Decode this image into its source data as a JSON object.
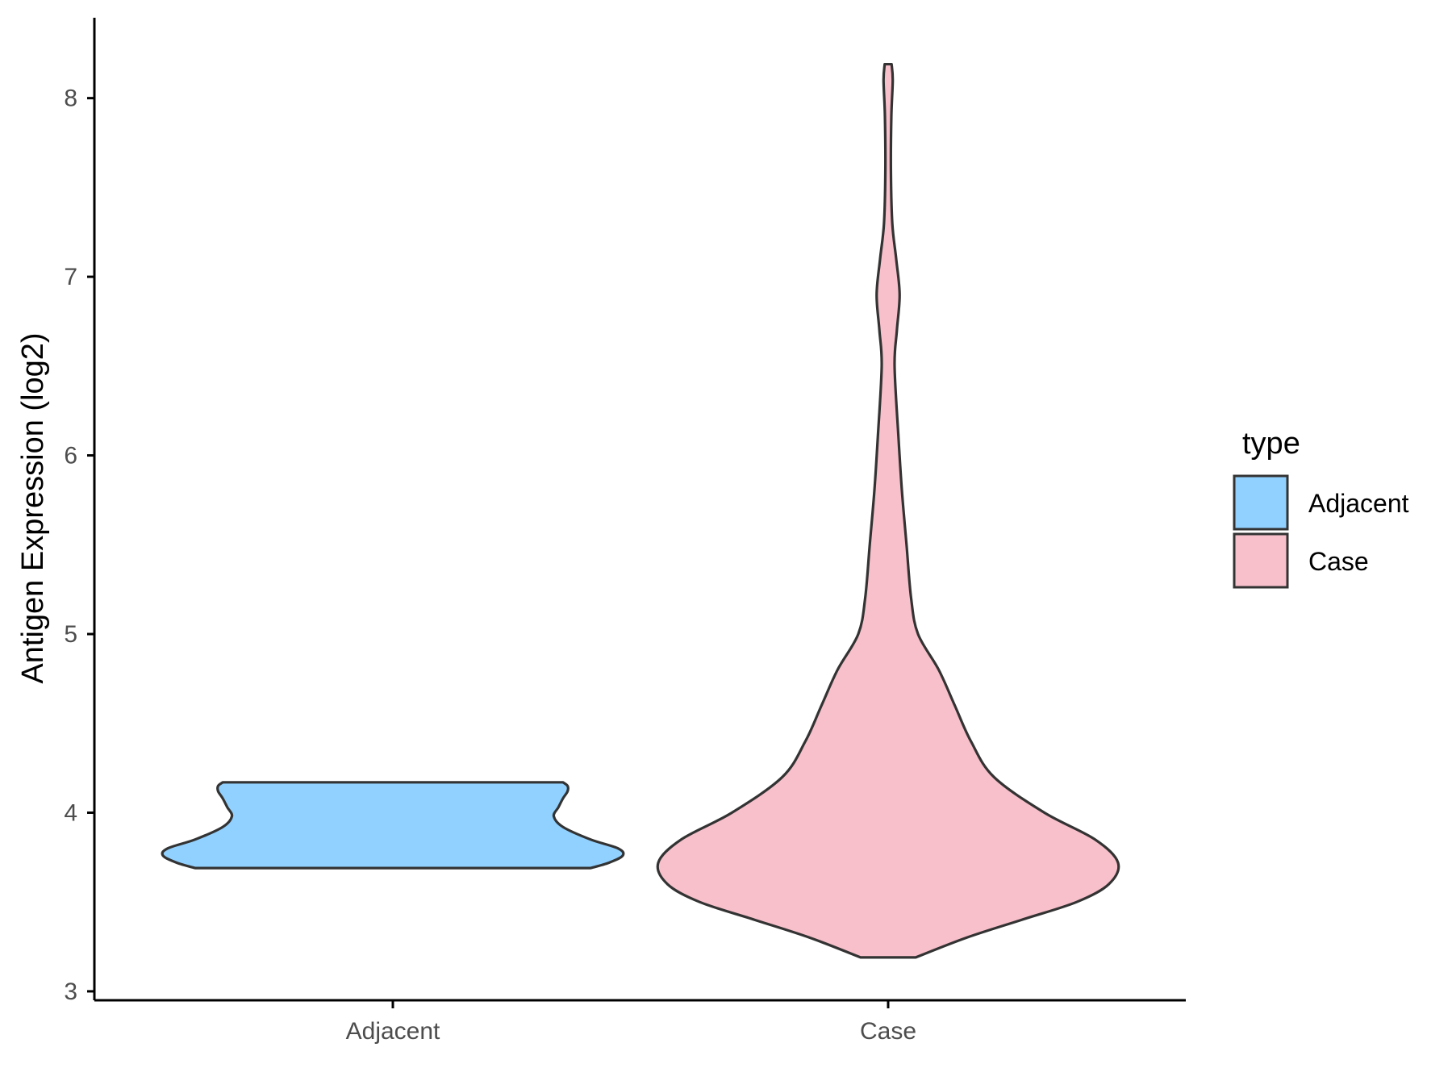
{
  "chart_data": {
    "type": "violin",
    "xlabel": "",
    "ylabel": "Antigen Expression (log2)",
    "ylim": [
      2.95,
      8.45
    ],
    "yticks": [
      3,
      4,
      5,
      6,
      7,
      8
    ],
    "categories": [
      "Adjacent",
      "Case"
    ],
    "grid": false,
    "legend": {
      "title": "type",
      "placement": "right",
      "entries": [
        {
          "label": "Adjacent",
          "color": "#91D1FF"
        },
        {
          "label": "Case",
          "color": "#F8C0CB"
        }
      ]
    },
    "series": [
      {
        "name": "Adjacent",
        "color": "#91D1FF",
        "min": 3.69,
        "max": 4.17,
        "density_profile": [
          [
            3.69,
            0.86
          ],
          [
            3.72,
            0.94
          ],
          [
            3.76,
            1.0
          ],
          [
            3.8,
            0.98
          ],
          [
            3.85,
            0.86
          ],
          [
            3.92,
            0.74
          ],
          [
            3.98,
            0.7
          ],
          [
            4.03,
            0.72
          ],
          [
            4.08,
            0.74
          ],
          [
            4.12,
            0.76
          ],
          [
            4.15,
            0.76
          ],
          [
            4.17,
            0.74
          ]
        ]
      },
      {
        "name": "Case",
        "color": "#F8C0CB",
        "min": 3.19,
        "max": 8.19,
        "density_profile": [
          [
            3.19,
            0.12
          ],
          [
            3.3,
            0.34
          ],
          [
            3.4,
            0.58
          ],
          [
            3.5,
            0.82
          ],
          [
            3.6,
            0.96
          ],
          [
            3.72,
            1.0
          ],
          [
            3.85,
            0.9
          ],
          [
            4.0,
            0.68
          ],
          [
            4.2,
            0.46
          ],
          [
            4.4,
            0.36
          ],
          [
            4.6,
            0.29
          ],
          [
            4.8,
            0.22
          ],
          [
            5.0,
            0.13
          ],
          [
            5.2,
            0.1
          ],
          [
            5.5,
            0.08
          ],
          [
            5.8,
            0.06
          ],
          [
            6.1,
            0.045
          ],
          [
            6.5,
            0.028
          ],
          [
            6.7,
            0.038
          ],
          [
            6.9,
            0.05
          ],
          [
            7.1,
            0.035
          ],
          [
            7.3,
            0.018
          ],
          [
            7.6,
            0.012
          ],
          [
            7.9,
            0.014
          ],
          [
            8.1,
            0.02
          ],
          [
            8.19,
            0.015
          ]
        ]
      }
    ]
  }
}
